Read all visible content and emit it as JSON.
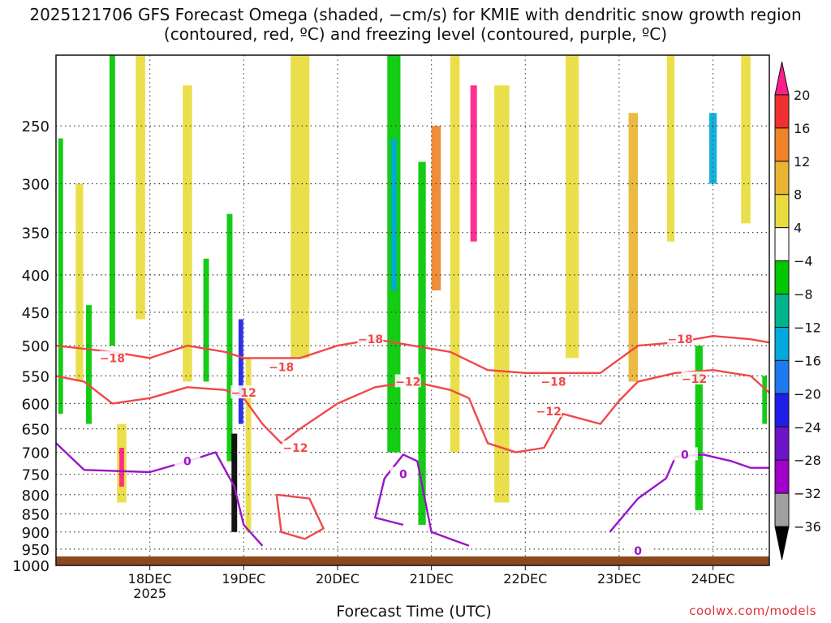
{
  "chart_data": {
    "type": "heatmap",
    "title": "2025121706 GFS Forecast Omega (shaded, −cm/s) for KMIE with dendritic snow growth region (contoured, red, ºC) and freezing level (contoured, purple, ºC)",
    "xlabel": "Forecast Time (UTC)",
    "ylabel": "",
    "y_ticks": [
      250,
      300,
      350,
      400,
      450,
      500,
      550,
      600,
      650,
      700,
      750,
      800,
      850,
      900,
      950,
      1000
    ],
    "y_range": [
      200,
      1000
    ],
    "x_range": [
      0,
      7.6
    ],
    "x_ticks": [
      {
        "pos": 1,
        "label": "18DEC",
        "sub": "2025"
      },
      {
        "pos": 2,
        "label": "19DEC",
        "sub": ""
      },
      {
        "pos": 3,
        "label": "20DEC",
        "sub": ""
      },
      {
        "pos": 4,
        "label": "21DEC",
        "sub": ""
      },
      {
        "pos": 5,
        "label": "22DEC",
        "sub": ""
      },
      {
        "pos": 6,
        "label": "23DEC",
        "sub": ""
      },
      {
        "pos": 7,
        "label": "24DEC",
        "sub": ""
      }
    ],
    "colorbar": {
      "labels": [
        "20",
        "16",
        "12",
        "8",
        "4",
        "−4",
        "−8",
        "−12",
        "−16",
        "−20",
        "−24",
        "−28",
        "−32",
        "−36"
      ],
      "colors": [
        "#ff1e8c",
        "#f03030",
        "#f08228",
        "#e8b432",
        "#e8dc3c",
        "#ffffff",
        "#00c800",
        "#00b48c",
        "#00aadc",
        "#1e78f0",
        "#1e1ee6",
        "#6e14c8",
        "#a000c8",
        "#a0a0a0",
        "#000000"
      ]
    },
    "omega_cells": [
      {
        "x": 0.05,
        "p0": 260,
        "p1": 620,
        "w": 0.05,
        "band": "#00c800"
      },
      {
        "x": 0.25,
        "p0": 300,
        "p1": 560,
        "w": 0.08,
        "band": "#e8dc3c"
      },
      {
        "x": 0.35,
        "p0": 440,
        "p1": 640,
        "w": 0.06,
        "band": "#00c800"
      },
      {
        "x": 0.6,
        "p0": 200,
        "p1": 500,
        "w": 0.06,
        "band": "#00c800"
      },
      {
        "x": 0.7,
        "p0": 640,
        "p1": 820,
        "w": 0.1,
        "band": "#e8dc3c"
      },
      {
        "x": 0.7,
        "p0": 690,
        "p1": 780,
        "w": 0.05,
        "band": "#ff1e8c"
      },
      {
        "x": 0.9,
        "p0": 200,
        "p1": 460,
        "w": 0.1,
        "band": "#e8dc3c"
      },
      {
        "x": 1.4,
        "p0": 220,
        "p1": 560,
        "w": 0.1,
        "band": "#e8dc3c"
      },
      {
        "x": 1.6,
        "p0": 380,
        "p1": 560,
        "w": 0.06,
        "band": "#00c800"
      },
      {
        "x": 1.85,
        "p0": 330,
        "p1": 720,
        "w": 0.06,
        "band": "#00c800"
      },
      {
        "x": 1.9,
        "p0": 660,
        "p1": 900,
        "w": 0.06,
        "band": "#000000"
      },
      {
        "x": 1.97,
        "p0": 460,
        "p1": 640,
        "w": 0.05,
        "band": "#1e1ee6"
      },
      {
        "x": 2.05,
        "p0": 520,
        "p1": 900,
        "w": 0.06,
        "band": "#e8dc3c"
      },
      {
        "x": 2.6,
        "p0": 200,
        "p1": 520,
        "w": 0.2,
        "band": "#e8dc3c"
      },
      {
        "x": 3.6,
        "p0": 200,
        "p1": 700,
        "w": 0.14,
        "band": "#00c800"
      },
      {
        "x": 3.6,
        "p0": 260,
        "p1": 420,
        "w": 0.06,
        "band": "#00aadc"
      },
      {
        "x": 3.9,
        "p0": 280,
        "p1": 880,
        "w": 0.08,
        "band": "#00c800"
      },
      {
        "x": 4.05,
        "p0": 250,
        "p1": 420,
        "w": 0.1,
        "band": "#f08228"
      },
      {
        "x": 4.25,
        "p0": 200,
        "p1": 700,
        "w": 0.1,
        "band": "#e8dc3c"
      },
      {
        "x": 4.45,
        "p0": 220,
        "p1": 360,
        "w": 0.07,
        "band": "#ff1e8c"
      },
      {
        "x": 4.75,
        "p0": 220,
        "p1": 820,
        "w": 0.16,
        "band": "#e8dc3c"
      },
      {
        "x": 5.5,
        "p0": 200,
        "p1": 520,
        "w": 0.14,
        "band": "#e8dc3c"
      },
      {
        "x": 6.15,
        "p0": 240,
        "p1": 560,
        "w": 0.1,
        "band": "#e8b432"
      },
      {
        "x": 6.55,
        "p0": 200,
        "p1": 360,
        "w": 0.08,
        "band": "#e8dc3c"
      },
      {
        "x": 6.85,
        "p0": 500,
        "p1": 840,
        "w": 0.08,
        "band": "#00c800"
      },
      {
        "x": 7.0,
        "p0": 240,
        "p1": 300,
        "w": 0.08,
        "band": "#00aadc"
      },
      {
        "x": 7.35,
        "p0": 200,
        "p1": 340,
        "w": 0.1,
        "band": "#e8dc3c"
      },
      {
        "x": 7.55,
        "p0": 550,
        "p1": 640,
        "w": 0.05,
        "band": "#00c800"
      }
    ],
    "contours": [
      {
        "name": "dgz-upper",
        "color": "#f04848",
        "label": "−18",
        "points": [
          [
            0,
            500
          ],
          [
            0.6,
            510
          ],
          [
            1.0,
            520
          ],
          [
            1.4,
            500
          ],
          [
            1.8,
            510
          ],
          [
            2.0,
            520
          ],
          [
            2.2,
            520
          ],
          [
            2.6,
            520
          ],
          [
            3.0,
            500
          ],
          [
            3.4,
            490
          ],
          [
            3.8,
            500
          ],
          [
            4.2,
            510
          ],
          [
            4.6,
            540
          ],
          [
            5.0,
            545
          ],
          [
            5.4,
            545
          ],
          [
            5.8,
            545
          ],
          [
            6.2,
            500
          ],
          [
            6.6,
            495
          ],
          [
            7.0,
            485
          ],
          [
            7.4,
            490
          ],
          [
            7.6,
            495
          ]
        ],
        "labels_at": [
          [
            0.6,
            520
          ],
          [
            2.4,
            535
          ],
          [
            3.35,
            490
          ],
          [
            5.3,
            560
          ],
          [
            6.65,
            490
          ]
        ]
      },
      {
        "name": "dgz-lower",
        "color": "#f04848",
        "label": "−12",
        "points": [
          [
            0,
            550
          ],
          [
            0.3,
            560
          ],
          [
            0.6,
            600
          ],
          [
            1.0,
            590
          ],
          [
            1.4,
            570
          ],
          [
            1.8,
            575
          ],
          [
            2.0,
            590
          ],
          [
            2.2,
            640
          ],
          [
            2.4,
            680
          ],
          [
            2.6,
            650
          ],
          [
            3.0,
            600
          ],
          [
            3.4,
            570
          ],
          [
            3.8,
            560
          ],
          [
            4.2,
            575
          ],
          [
            4.4,
            590
          ],
          [
            4.6,
            680
          ],
          [
            4.9,
            700
          ],
          [
            5.2,
            690
          ],
          [
            5.4,
            620
          ],
          [
            5.8,
            640
          ],
          [
            6.0,
            595
          ],
          [
            6.2,
            560
          ],
          [
            6.6,
            545
          ],
          [
            7.0,
            540
          ],
          [
            7.4,
            550
          ],
          [
            7.6,
            580
          ]
        ],
        "labels_at": [
          [
            2.0,
            580
          ],
          [
            2.55,
            690
          ],
          [
            3.75,
            560
          ],
          [
            5.25,
            615
          ],
          [
            6.8,
            555
          ]
        ]
      },
      {
        "name": "dgz-closed",
        "color": "#f04848",
        "label": "",
        "points": [
          [
            2.35,
            800
          ],
          [
            2.7,
            810
          ],
          [
            2.85,
            890
          ],
          [
            2.65,
            920
          ],
          [
            2.4,
            900
          ],
          [
            2.35,
            800
          ]
        ],
        "labels_at": []
      },
      {
        "name": "freezing-level",
        "color": "#9914c8",
        "label": "0",
        "points": [
          [
            0,
            680
          ],
          [
            0.3,
            740
          ],
          [
            1.0,
            745
          ],
          [
            1.4,
            720
          ],
          [
            1.7,
            700
          ],
          [
            1.9,
            780
          ],
          [
            2.0,
            880
          ],
          [
            2.2,
            940
          ]
        ],
        "labels_at": [
          [
            1.4,
            720
          ]
        ]
      },
      {
        "name": "freezing-level-2",
        "color": "#9914c8",
        "label": "0",
        "points": [
          [
            3.7,
            880
          ],
          [
            3.4,
            860
          ],
          [
            3.5,
            760
          ],
          [
            3.7,
            705
          ],
          [
            3.85,
            720
          ],
          [
            4.0,
            900
          ],
          [
            4.2,
            920
          ],
          [
            4.4,
            940
          ]
        ],
        "labels_at": [
          [
            3.7,
            750
          ]
        ]
      },
      {
        "name": "freezing-level-3",
        "color": "#9914c8",
        "label": "0",
        "points": [
          [
            5.9,
            900
          ],
          [
            6.2,
            810
          ],
          [
            6.5,
            760
          ],
          [
            6.6,
            710
          ],
          [
            6.9,
            705
          ],
          [
            7.2,
            720
          ],
          [
            7.4,
            735
          ],
          [
            7.6,
            735
          ]
        ],
        "labels_at": [
          [
            6.7,
            705
          ],
          [
            6.2,
            955
          ]
        ]
      }
    ]
  },
  "brand": "coolwx.com/models"
}
